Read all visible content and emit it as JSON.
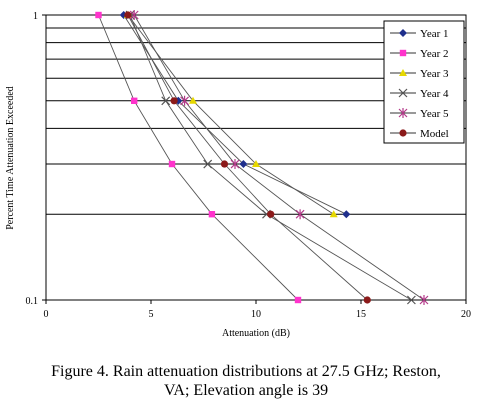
{
  "chart_data": {
    "type": "line",
    "xlabel": "Attenuation (dB)",
    "ylabel": "Percent Time Attenuation Exceeded",
    "xlim": [
      0,
      20
    ],
    "ylim": [
      0.1,
      1
    ],
    "yscale": "log",
    "xticks": [
      "0",
      "5",
      "10",
      "15",
      "20"
    ],
    "yticks": [
      "1",
      "0.1"
    ],
    "grid": "horizontal",
    "legend_position": "top-right",
    "series": [
      {
        "name": "Year 1",
        "color": "#1f2f8c",
        "marker": "diamond",
        "points": [
          [
            3.7,
            1.0
          ],
          [
            6.3,
            0.5
          ],
          [
            9.4,
            0.3
          ],
          [
            14.3,
            0.2
          ]
        ]
      },
      {
        "name": "Year 2",
        "color": "#ff33cc",
        "marker": "square",
        "points": [
          [
            2.5,
            1.0
          ],
          [
            4.2,
            0.5
          ],
          [
            6.0,
            0.3
          ],
          [
            7.9,
            0.2
          ],
          [
            12.0,
            0.1
          ]
        ]
      },
      {
        "name": "Year 3",
        "color": "#e6d800",
        "marker": "triangle",
        "points": [
          [
            3.9,
            1.0
          ],
          [
            7.0,
            0.5
          ],
          [
            10.0,
            0.3
          ],
          [
            13.7,
            0.2
          ]
        ]
      },
      {
        "name": "Year 4",
        "color": "#555555",
        "marker": "x",
        "points": [
          [
            4.0,
            1.0
          ],
          [
            5.7,
            0.5
          ],
          [
            7.7,
            0.3
          ],
          [
            10.5,
            0.2
          ],
          [
            17.4,
            0.1
          ]
        ]
      },
      {
        "name": "Year 5",
        "color": "#b33a8a",
        "marker": "star",
        "points": [
          [
            4.2,
            1.0
          ],
          [
            6.6,
            0.5
          ],
          [
            9.0,
            0.3
          ],
          [
            12.1,
            0.2
          ],
          [
            18.0,
            0.1
          ]
        ]
      },
      {
        "name": "Model",
        "color": "#8b1a1a",
        "marker": "circle",
        "points": [
          [
            3.9,
            1.0
          ],
          [
            6.1,
            0.5
          ],
          [
            8.5,
            0.3
          ],
          [
            10.7,
            0.2
          ],
          [
            15.3,
            0.1
          ]
        ]
      }
    ]
  },
  "caption": {
    "line1": "Figure 4. Rain attenuation distributions at 27.5 GHz; Reston,",
    "line2": "VA; Elevation angle is 39"
  }
}
